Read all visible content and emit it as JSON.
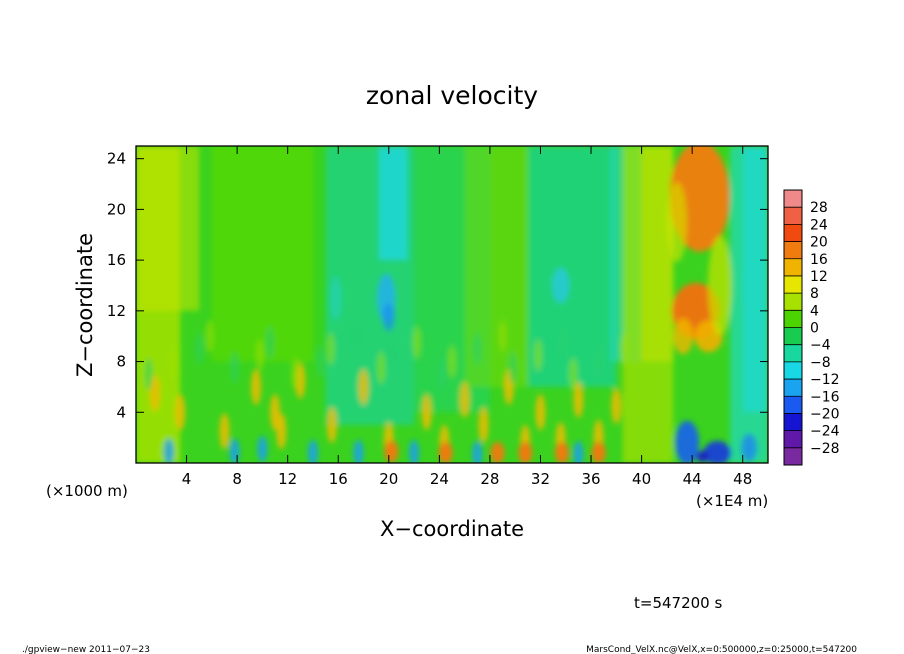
{
  "chart_data": {
    "type": "heatmap",
    "title": "zonal velocity",
    "xlabel": "X−coordinate",
    "ylabel": "Z−coordinate",
    "x_unit_left": "(×1000 m)",
    "x_unit_right": "(×1E4 m)",
    "xlim": [
      0,
      50
    ],
    "ylim": [
      0,
      25
    ],
    "x_ticks": [
      4,
      8,
      12,
      16,
      20,
      24,
      28,
      32,
      36,
      40,
      44,
      48
    ],
    "x_tick_labels": [
      "4",
      "8",
      "12",
      "16",
      "20",
      "24",
      "28",
      "32",
      "36",
      "40",
      "44",
      "48"
    ],
    "y_ticks": [
      4,
      8,
      12,
      16,
      20,
      24
    ],
    "y_tick_labels": [
      "4",
      "8",
      "12",
      "16",
      "20",
      "24"
    ],
    "colorbar": {
      "levels": [
        28,
        24,
        20,
        16,
        12,
        8,
        4,
        0,
        -4,
        -8,
        -12,
        -16,
        -20,
        -24,
        -28
      ],
      "labels": [
        "28",
        "24",
        "20",
        "16",
        "12",
        "8",
        "4",
        "0",
        "−4",
        "−8",
        "−12",
        "−16",
        "−20",
        "−24",
        "−28"
      ],
      "colors": [
        "#f08a8a",
        "#f06045",
        "#f04a10",
        "#f07c10",
        "#f0b400",
        "#e6e600",
        "#a8e000",
        "#4cd400",
        "#18cc50",
        "#18d8a0",
        "#18d8e6",
        "#1aa4f0",
        "#1a5af0",
        "#1414d2",
        "#6018a8",
        "#7a2aa0"
      ]
    },
    "annotation_time": "t=547200 s",
    "footer_left": "./gpview−new   2011−07−23",
    "footer_right": "MarsCond_VelX.nc@VelX,x=0:500000,z=0:25000,t=547200"
  }
}
